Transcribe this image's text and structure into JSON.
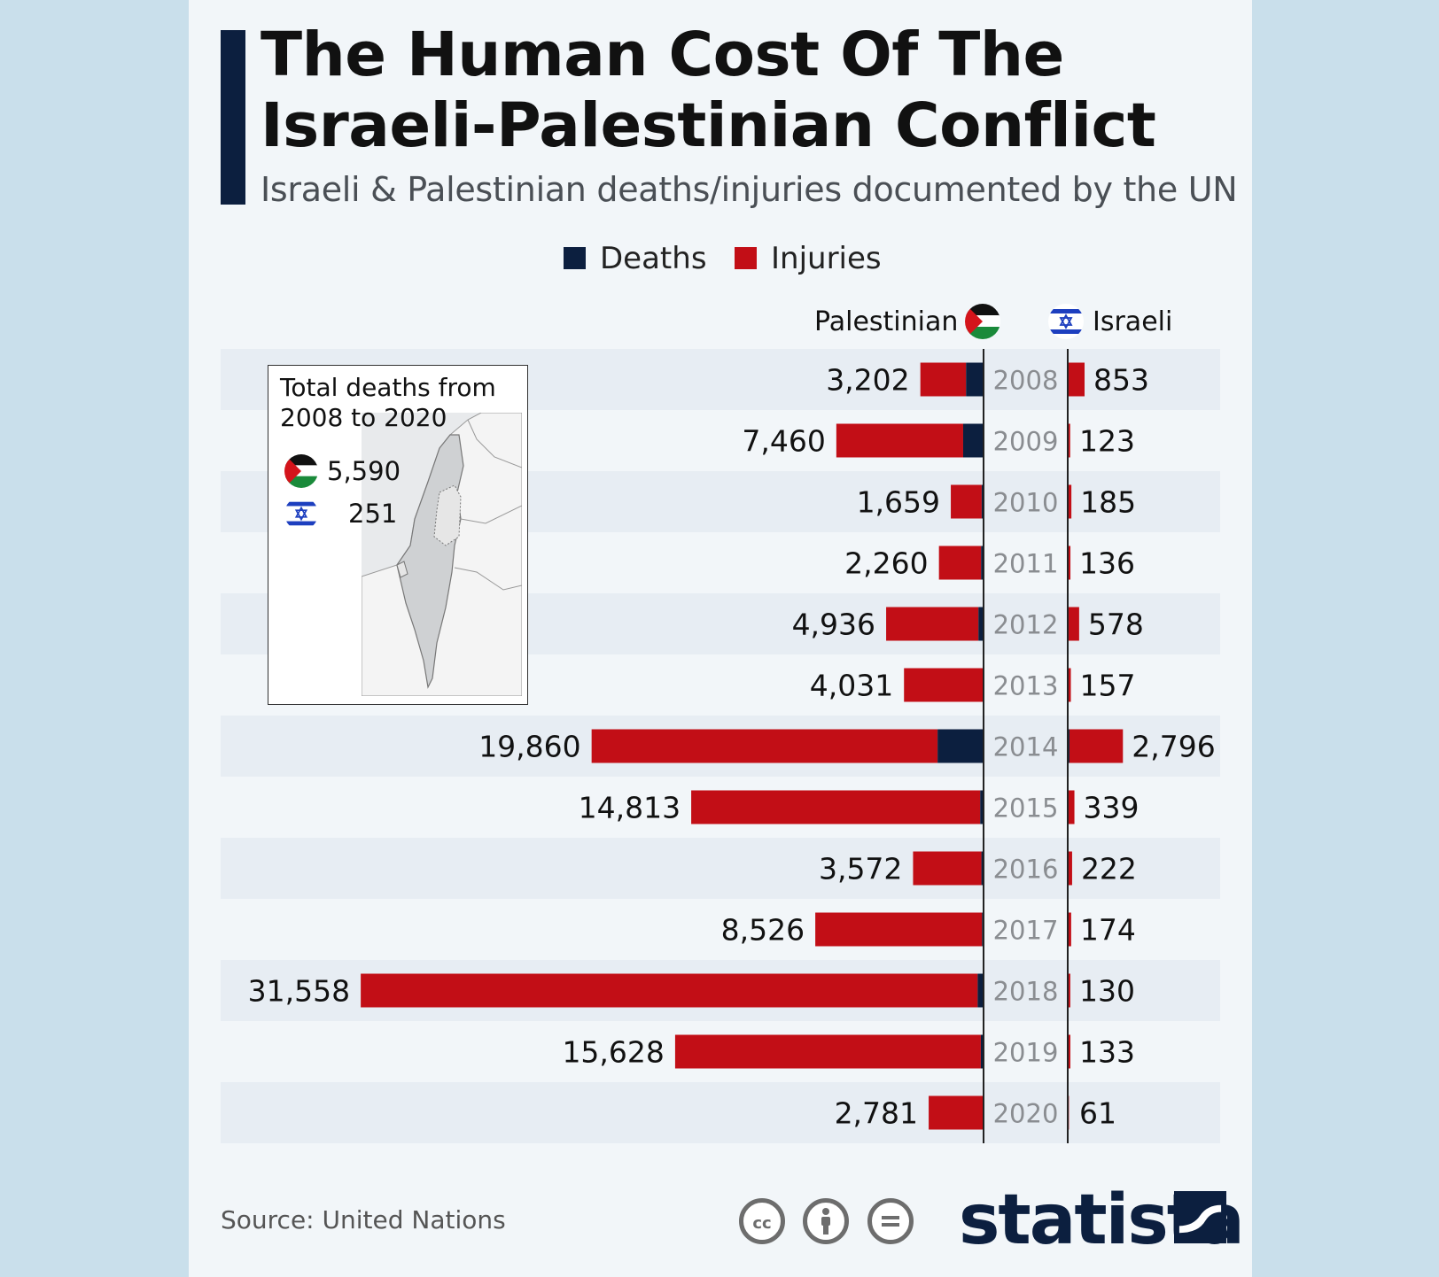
{
  "title_lines": [
    "The Human Cost Of The",
    "Israeli-Palestinian Conflict"
  ],
  "subtitle": "Israeli & Palestinian deaths/injuries documented by the UN",
  "legend": {
    "deaths": {
      "label": "Deaths",
      "color": "#0c1f3f"
    },
    "injuries": {
      "label": "Injuries",
      "color": "#c20e16"
    }
  },
  "columns": {
    "palestinian": "Palestinian",
    "israeli": "Israeli"
  },
  "inset": {
    "title_lines": [
      "Total deaths from",
      "2008 to 2020"
    ],
    "palestinian_total": "5,590",
    "israeli_total": "251",
    "flags": [
      "palestine-flag-icon",
      "israel-flag-icon"
    ]
  },
  "chart_data": {
    "type": "bar",
    "orientation": "horizontal-diverging",
    "title": "The Human Cost Of The Israeli-Palestinian Conflict",
    "subtitle": "Israeli & Palestinian deaths/injuries documented by the UN",
    "categories": [
      "2008",
      "2009",
      "2010",
      "2011",
      "2012",
      "2013",
      "2014",
      "2015",
      "2016",
      "2017",
      "2018",
      "2019",
      "2020"
    ],
    "palestinian": {
      "label": "Palestinian",
      "totals": [
        3202,
        7460,
        1659,
        2260,
        4936,
        4031,
        19860,
        14813,
        3572,
        8526,
        31558,
        15628,
        2781
      ],
      "total_labels": [
        "3,202",
        "7,460",
        "1,659",
        "2,260",
        "4,936",
        "4,031",
        "19,860",
        "14,813",
        "3,572",
        "8,526",
        "31,558",
        "15,628",
        "2,781"
      ],
      "deaths": [
        887,
        1034,
        95,
        124,
        260,
        39,
        2329,
        170,
        108,
        77,
        299,
        138,
        30
      ]
    },
    "israeli": {
      "label": "Israeli",
      "totals": [
        853,
        123,
        185,
        136,
        578,
        157,
        2796,
        339,
        222,
        174,
        130,
        133,
        61
      ],
      "total_labels": [
        "853",
        "123",
        "185",
        "136",
        "578",
        "157",
        "2,796",
        "339",
        "222",
        "174",
        "130",
        "133",
        "61"
      ],
      "deaths": [
        35,
        9,
        8,
        11,
        7,
        6,
        88,
        28,
        17,
        15,
        14,
        10,
        3
      ]
    },
    "series": [
      {
        "name": "Deaths"
      },
      {
        "name": "Injuries"
      }
    ],
    "xlim": [
      0,
      33000
    ]
  },
  "source": "Source: United Nations",
  "license_icons": [
    "cc-icon",
    "attribution-icon",
    "noderivs-icon"
  ],
  "logo": "statista"
}
